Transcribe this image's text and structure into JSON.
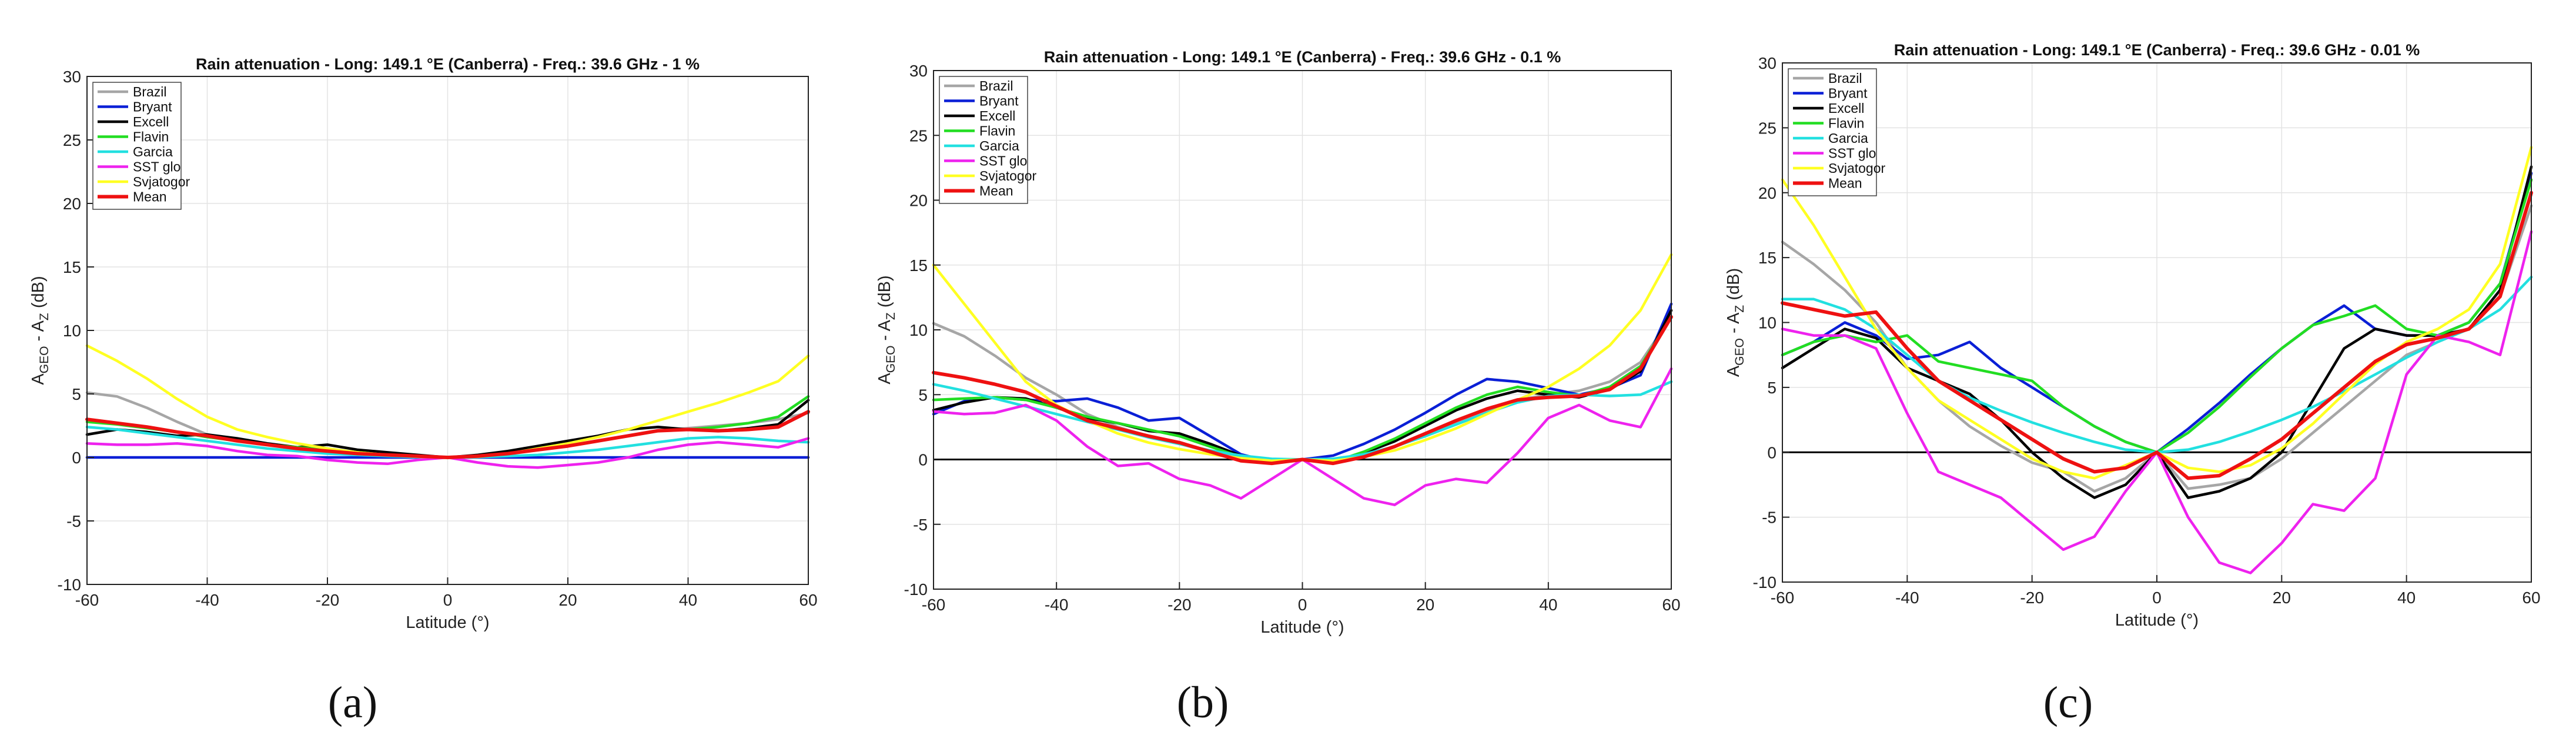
{
  "chart_data": [
    {
      "panel_label": "(a)",
      "type": "line",
      "title": "Rain attenuation - Long: 149.1 °E (Canberra) - Freq.: 39.6 GHz - 1 %",
      "xlabel": "Latitude (°)",
      "ylabel": "A_GEO - A_Z (dB)",
      "ylabel_main": "A",
      "ylabel_sub1": "GEO",
      "ylabel_mid": " - A",
      "ylabel_sub2": "Z",
      "ylabel_tail": " (dB)",
      "xlim": [
        -60,
        60
      ],
      "ylim": [
        -10,
        30
      ],
      "xticks": [
        -60,
        -40,
        -20,
        0,
        20,
        40,
        60
      ],
      "yticks": [
        -10,
        -5,
        0,
        5,
        10,
        15,
        20,
        25,
        30
      ],
      "grid": true,
      "legend": "top-left",
      "x": [
        -60,
        -55,
        -50,
        -45,
        -40,
        -35,
        -30,
        -25,
        -20,
        -15,
        -10,
        -5,
        0,
        5,
        10,
        15,
        20,
        25,
        30,
        35,
        40,
        45,
        50,
        55,
        60
      ],
      "series": [
        {
          "name": "Brazil",
          "color": "#a6a6a6",
          "values": [
            5.1,
            4.8,
            3.9,
            2.8,
            1.8,
            1.4,
            1.0,
            0.7,
            0.5,
            0.35,
            0.2,
            0.1,
            0,
            0.1,
            0.3,
            0.6,
            0.9,
            1.3,
            1.7,
            2.1,
            2.3,
            2.5,
            2.7,
            3.0,
            3.5
          ]
        },
        {
          "name": "Bryant",
          "color": "#0a1fd6",
          "values": [
            0,
            0,
            0,
            0,
            0,
            0,
            0,
            0,
            0,
            0,
            0,
            0,
            0,
            0,
            0,
            0,
            0,
            0,
            0,
            0,
            0,
            0,
            0,
            0,
            0
          ]
        },
        {
          "name": "Excell",
          "color": "#000000",
          "values": [
            1.8,
            2.2,
            2.0,
            1.7,
            1.8,
            1.5,
            1.1,
            0.8,
            1.0,
            0.6,
            0.4,
            0.2,
            0,
            0.2,
            0.5,
            0.9,
            1.3,
            1.7,
            2.2,
            2.4,
            2.2,
            2.1,
            2.3,
            2.6,
            4.5
          ]
        },
        {
          "name": "Flavin",
          "color": "#22dd22",
          "values": [
            2.8,
            2.6,
            2.3,
            2.0,
            1.6,
            1.3,
            1.0,
            0.8,
            0.6,
            0.4,
            0.2,
            0.1,
            0,
            0.1,
            0.3,
            0.6,
            0.9,
            1.3,
            1.7,
            2.1,
            2.2,
            2.4,
            2.7,
            3.2,
            4.8
          ]
        },
        {
          "name": "Garcia",
          "color": "#22e0e0",
          "values": [
            2.4,
            2.2,
            1.9,
            1.6,
            1.3,
            1.0,
            0.7,
            0.5,
            0.3,
            0.2,
            0.1,
            0.03,
            0,
            0.03,
            0.1,
            0.2,
            0.4,
            0.6,
            0.9,
            1.2,
            1.5,
            1.6,
            1.5,
            1.3,
            1.2
          ]
        },
        {
          "name": "SST glo",
          "color": "#ee22ee",
          "values": [
            1.1,
            1.0,
            1.0,
            1.1,
            0.9,
            0.5,
            0.2,
            0.1,
            -0.2,
            -0.4,
            -0.5,
            -0.2,
            0,
            -0.4,
            -0.7,
            -0.8,
            -0.6,
            -0.4,
            0,
            0.6,
            1.0,
            1.2,
            1.0,
            0.8,
            1.5
          ]
        },
        {
          "name": "Svjatogor",
          "color": "#ffff22",
          "values": [
            8.8,
            7.6,
            6.2,
            4.6,
            3.2,
            2.2,
            1.6,
            1.1,
            0.7,
            0.4,
            0.2,
            0.05,
            0,
            0.05,
            0.3,
            0.7,
            1.1,
            1.6,
            2.2,
            2.9,
            3.6,
            4.3,
            5.1,
            6.0,
            8.0
          ]
        },
        {
          "name": "Mean",
          "color": "#ee1111",
          "values": [
            3.0,
            2.7,
            2.4,
            2.0,
            1.7,
            1.3,
            1.0,
            0.7,
            0.5,
            0.3,
            0.2,
            0.1,
            0,
            0.1,
            0.3,
            0.6,
            0.9,
            1.3,
            1.7,
            2.1,
            2.2,
            2.1,
            2.2,
            2.4,
            3.6
          ]
        }
      ]
    },
    {
      "panel_label": "(b)",
      "type": "line",
      "title": "Rain attenuation - Long: 149.1 °E (Canberra) - Freq.: 39.6 GHz - 0.1 %",
      "xlabel": "Latitude (°)",
      "ylabel": "A_GEO - A_Z (dB)",
      "ylabel_main": "A",
      "ylabel_sub1": "GEO",
      "ylabel_mid": " - A",
      "ylabel_sub2": "Z",
      "ylabel_tail": " (dB)",
      "xlim": [
        -60,
        60
      ],
      "ylim": [
        -10,
        30
      ],
      "xticks": [
        -60,
        -40,
        -20,
        0,
        20,
        40,
        60
      ],
      "yticks": [
        -10,
        -5,
        0,
        5,
        10,
        15,
        20,
        25,
        30
      ],
      "grid": true,
      "legend": "top-left",
      "x": [
        -60,
        -55,
        -50,
        -45,
        -40,
        -35,
        -30,
        -25,
        -20,
        -15,
        -10,
        -5,
        0,
        5,
        10,
        15,
        20,
        25,
        30,
        35,
        40,
        45,
        50,
        55,
        60
      ],
      "series": [
        {
          "name": "Brazil",
          "color": "#a6a6a6",
          "values": [
            10.5,
            9.5,
            8.0,
            6.3,
            5.0,
            3.5,
            2.5,
            1.8,
            1.2,
            0.6,
            0.1,
            -0.2,
            0,
            -0.2,
            0.3,
            1.0,
            1.8,
            2.8,
            3.8,
            4.6,
            5.0,
            5.3,
            6.0,
            7.5,
            11.0
          ]
        },
        {
          "name": "Bryant",
          "color": "#0a1fd6",
          "values": [
            3.5,
            4.5,
            4.8,
            4.6,
            4.5,
            4.7,
            4.0,
            3.0,
            3.2,
            1.8,
            0.4,
            -0.2,
            0,
            0.3,
            1.2,
            2.3,
            3.6,
            5.0,
            6.2,
            6.0,
            5.5,
            5.0,
            5.5,
            6.5,
            12.0
          ]
        },
        {
          "name": "Excell",
          "color": "#000000",
          "values": [
            3.8,
            4.4,
            4.8,
            4.7,
            4.0,
            3.2,
            2.8,
            2.2,
            2.0,
            1.2,
            0.3,
            -0.3,
            0,
            -0.3,
            0.5,
            1.4,
            2.6,
            3.8,
            4.7,
            5.3,
            5.0,
            4.8,
            5.4,
            6.8,
            11.5
          ]
        },
        {
          "name": "Flavin",
          "color": "#22dd22",
          "values": [
            4.6,
            4.7,
            4.8,
            4.6,
            4.0,
            3.3,
            2.8,
            2.3,
            1.8,
            1.0,
            0.2,
            -0.3,
            0,
            -0.2,
            0.6,
            1.6,
            2.8,
            4.0,
            5.0,
            5.6,
            5.2,
            4.9,
            5.6,
            7.2,
            11.0
          ]
        },
        {
          "name": "Garcia",
          "color": "#22e0e0",
          "values": [
            5.8,
            5.3,
            4.7,
            4.1,
            3.5,
            2.9,
            2.3,
            1.7,
            1.2,
            0.7,
            0.3,
            0.05,
            0,
            0.05,
            0.4,
            1.0,
            1.8,
            2.7,
            3.6,
            4.4,
            4.9,
            5.0,
            4.9,
            5.0,
            6.0
          ]
        },
        {
          "name": "SST glo",
          "color": "#ee22ee",
          "values": [
            3.7,
            3.5,
            3.6,
            4.2,
            3.0,
            1.0,
            -0.5,
            -0.3,
            -1.5,
            -2.0,
            -3.0,
            -1.5,
            0,
            -1.5,
            -3.0,
            -3.5,
            -2.0,
            -1.5,
            -1.8,
            0.5,
            3.2,
            4.2,
            3.0,
            2.5,
            7.0
          ]
        },
        {
          "name": "Svjatogor",
          "color": "#ffff22",
          "values": [
            15.0,
            12.0,
            9.0,
            6.0,
            4.2,
            3.0,
            2.0,
            1.3,
            0.8,
            0.4,
            0.1,
            -0.1,
            0,
            -0.1,
            0.2,
            0.7,
            1.5,
            2.4,
            3.5,
            4.6,
            5.6,
            7.0,
            8.8,
            11.5,
            15.8
          ]
        },
        {
          "name": "Mean",
          "color": "#ee1111",
          "values": [
            6.7,
            6.3,
            5.8,
            5.2,
            4.1,
            3.0,
            2.4,
            1.8,
            1.3,
            0.6,
            -0.1,
            -0.3,
            0,
            -0.3,
            0.2,
            1.0,
            2.0,
            3.0,
            3.9,
            4.6,
            4.8,
            4.9,
            5.4,
            7.0,
            11.0
          ]
        }
      ]
    },
    {
      "panel_label": "(c)",
      "type": "line",
      "title": "Rain attenuation - Long: 149.1 °E (Canberra) - Freq.: 39.6 GHz - 0.01 %",
      "xlabel": "Latitude (°)",
      "ylabel": "A_GEO - A_Z (dB)",
      "ylabel_main": "A",
      "ylabel_sub1": "GEO",
      "ylabel_mid": " - A",
      "ylabel_sub2": "Z",
      "ylabel_tail": " (dB)",
      "xlim": [
        -60,
        60
      ],
      "ylim": [
        -10,
        30
      ],
      "xticks": [
        -60,
        -40,
        -20,
        0,
        20,
        40,
        60
      ],
      "yticks": [
        -10,
        -5,
        0,
        5,
        10,
        15,
        20,
        25,
        30
      ],
      "grid": true,
      "legend": "top-left",
      "x": [
        -60,
        -55,
        -50,
        -45,
        -40,
        -35,
        -30,
        -25,
        -20,
        -15,
        -10,
        -5,
        0,
        5,
        10,
        15,
        20,
        25,
        30,
        35,
        40,
        45,
        50,
        55,
        60
      ],
      "series": [
        {
          "name": "Brazil",
          "color": "#a6a6a6",
          "values": [
            16.2,
            14.5,
            12.5,
            10.0,
            6.5,
            4.0,
            2.0,
            0.5,
            -0.8,
            -1.5,
            -3.0,
            -2.0,
            0,
            -2.8,
            -2.5,
            -2.0,
            -0.5,
            1.5,
            3.5,
            5.5,
            7.5,
            8.5,
            9.5,
            12.0,
            19.0
          ]
        },
        {
          "name": "Bryant",
          "color": "#0a1fd6",
          "values": [
            7.5,
            8.5,
            10.0,
            9.0,
            7.2,
            7.5,
            8.5,
            6.5,
            5.0,
            3.5,
            2.0,
            0.8,
            0,
            1.8,
            3.8,
            6.0,
            8.0,
            9.8,
            11.3,
            9.5,
            9.0,
            9.0,
            10.0,
            13.0,
            21.5
          ]
        },
        {
          "name": "Excell",
          "color": "#000000",
          "values": [
            6.5,
            8.0,
            9.5,
            8.8,
            6.5,
            5.5,
            4.5,
            2.5,
            0,
            -2.0,
            -3.5,
            -2.5,
            0,
            -3.5,
            -3.0,
            -2.0,
            0,
            4.0,
            8.0,
            9.5,
            9.0,
            9.0,
            9.5,
            12.5,
            22.0
          ]
        },
        {
          "name": "Flavin",
          "color": "#22dd22",
          "values": [
            7.5,
            8.5,
            9.0,
            8.5,
            9.0,
            7.0,
            6.5,
            6.0,
            5.5,
            3.5,
            2.0,
            0.8,
            0,
            1.5,
            3.5,
            5.8,
            8.0,
            9.8,
            10.5,
            11.3,
            9.5,
            9.0,
            10.0,
            13.0,
            21.0
          ]
        },
        {
          "name": "Garcia",
          "color": "#22e0e0",
          "values": [
            11.8,
            11.8,
            11.0,
            9.5,
            7.5,
            5.5,
            4.2,
            3.2,
            2.3,
            1.5,
            0.8,
            0.2,
            0,
            0.2,
            0.8,
            1.6,
            2.5,
            3.5,
            4.7,
            6.0,
            7.3,
            8.5,
            9.5,
            11.0,
            13.5
          ]
        },
        {
          "name": "SST glo",
          "color": "#ee22ee",
          "values": [
            9.5,
            9.0,
            9.0,
            8.0,
            3.0,
            -1.5,
            -2.5,
            -3.5,
            -5.5,
            -7.5,
            -6.5,
            -3.0,
            0,
            -5.0,
            -8.5,
            -9.3,
            -7.0,
            -4.0,
            -4.5,
            -2.0,
            6.0,
            9.0,
            8.5,
            7.5,
            17.0
          ]
        },
        {
          "name": "Svjatogor",
          "color": "#ffff22",
          "values": [
            21.0,
            17.5,
            13.5,
            9.5,
            6.5,
            4.0,
            2.5,
            1.0,
            -0.5,
            -1.5,
            -2.0,
            -1.0,
            0,
            -1.2,
            -1.5,
            -1.0,
            0.3,
            2.2,
            4.5,
            6.8,
            8.5,
            9.5,
            11.0,
            14.5,
            23.5
          ]
        },
        {
          "name": "Mean",
          "color": "#ee1111",
          "values": [
            11.5,
            11.0,
            10.5,
            10.8,
            8.0,
            5.5,
            4.0,
            2.5,
            1.0,
            -0.5,
            -1.5,
            -1.2,
            0,
            -2.0,
            -1.8,
            -0.5,
            1.0,
            3.0,
            5.0,
            7.0,
            8.3,
            8.8,
            9.5,
            12.0,
            20.0
          ]
        }
      ]
    }
  ]
}
